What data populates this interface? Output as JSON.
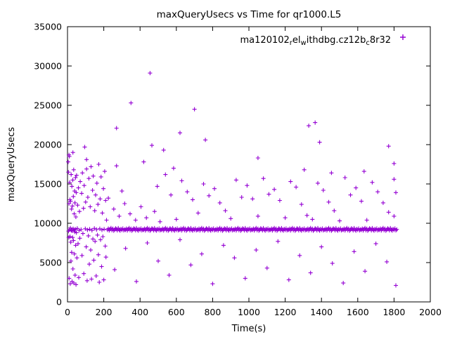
{
  "chart_data": {
    "type": "scatter",
    "title": "maxQueryUsecs vs Time for qr1000.L5",
    "xlabel": "Time(s)",
    "ylabel": "maxQueryUsecs",
    "xlim": [
      0,
      2000
    ],
    "ylim": [
      0,
      35000
    ],
    "xticks": [
      0,
      200,
      400,
      600,
      800,
      1000,
      1200,
      1400,
      1600,
      1800,
      2000
    ],
    "yticks": [
      0,
      5000,
      10000,
      15000,
      20000,
      25000,
      30000,
      35000
    ],
    "grid": false,
    "legend_position": "top-right-inside",
    "marker": "plus",
    "marker_color": "#9400D3",
    "legend": {
      "label_plain": "ma120102_rel_withdbg.cz12b_c8r32",
      "segments": [
        {
          "t": "ma120102",
          "sub": false
        },
        {
          "t": "r",
          "sub": true
        },
        {
          "t": "el",
          "sub": false
        },
        {
          "t": "w",
          "sub": true
        },
        {
          "t": "ithdbg.cz12b",
          "sub": false
        },
        {
          "t": "c",
          "sub": true
        },
        {
          "t": "8r32",
          "sub": false
        }
      ]
    },
    "band": {
      "note": "dense horizontal band of samples, expanded to points at render time",
      "x_start": 220,
      "x_end": 1815,
      "step": 5,
      "y_cycle": [
        9150,
        9320,
        9080,
        9250,
        9400,
        9120,
        9300,
        9050,
        9200,
        9350,
        9250,
        9100,
        9380,
        9180,
        9060,
        9280,
        9150,
        9330,
        9100,
        9220
      ]
    },
    "points": [
      [
        4,
        17800
      ],
      [
        5,
        16500
      ],
      [
        6,
        9000
      ],
      [
        7,
        8200
      ],
      [
        8,
        12500
      ],
      [
        8,
        18700
      ],
      [
        9,
        3000
      ],
      [
        10,
        18500
      ],
      [
        10,
        9200
      ],
      [
        12,
        15200
      ],
      [
        13,
        13000
      ],
      [
        14,
        8300
      ],
      [
        15,
        2300
      ],
      [
        16,
        9400
      ],
      [
        17,
        12800
      ],
      [
        18,
        7600
      ],
      [
        19,
        5200
      ],
      [
        20,
        16200
      ],
      [
        21,
        9100
      ],
      [
        22,
        11800
      ],
      [
        23,
        6300
      ],
      [
        24,
        14700
      ],
      [
        25,
        2600
      ],
      [
        26,
        9050
      ],
      [
        27,
        12200
      ],
      [
        28,
        8200
      ],
      [
        29,
        15500
      ],
      [
        30,
        19000
      ],
      [
        30,
        4200
      ],
      [
        31,
        9300
      ],
      [
        32,
        13400
      ],
      [
        33,
        7800
      ],
      [
        34,
        16800
      ],
      [
        35,
        2400
      ],
      [
        36,
        9150
      ],
      [
        37,
        11200
      ],
      [
        38,
        6100
      ],
      [
        39,
        14100
      ],
      [
        40,
        8900
      ],
      [
        41,
        12600
      ],
      [
        42,
        3400
      ],
      [
        43,
        9250
      ],
      [
        44,
        15800
      ],
      [
        45,
        7200
      ],
      [
        46,
        10800
      ],
      [
        47,
        2200
      ],
      [
        48,
        13900
      ],
      [
        49,
        8800
      ],
      [
        50,
        16100
      ],
      [
        52,
        5600
      ],
      [
        54,
        9350
      ],
      [
        56,
        12300
      ],
      [
        58,
        7400
      ],
      [
        60,
        14500
      ],
      [
        62,
        3100
      ],
      [
        64,
        9100
      ],
      [
        66,
        11500
      ],
      [
        68,
        8100
      ],
      [
        70,
        15300
      ],
      [
        75,
        9200
      ],
      [
        78,
        13800
      ],
      [
        80,
        5900
      ],
      [
        82,
        16400
      ],
      [
        85,
        8700
      ],
      [
        88,
        11900
      ],
      [
        90,
        3600
      ],
      [
        92,
        14800
      ],
      [
        95,
        19700
      ],
      [
        98,
        9300
      ],
      [
        100,
        12700
      ],
      [
        103,
        7000
      ],
      [
        105,
        16900
      ],
      [
        105,
        18100
      ],
      [
        108,
        2700
      ],
      [
        110,
        9150
      ],
      [
        112,
        13300
      ],
      [
        115,
        8400
      ],
      [
        118,
        15700
      ],
      [
        120,
        4800
      ],
      [
        122,
        9250
      ],
      [
        125,
        12100
      ],
      [
        128,
        6600
      ],
      [
        130,
        17200
      ],
      [
        132,
        2900
      ],
      [
        135,
        9100
      ],
      [
        138,
        14200
      ],
      [
        140,
        8000
      ],
      [
        142,
        16000
      ],
      [
        145,
        5300
      ],
      [
        148,
        9350
      ],
      [
        150,
        11600
      ],
      [
        152,
        7700
      ],
      [
        155,
        13600
      ],
      [
        158,
        3300
      ],
      [
        160,
        9200
      ],
      [
        162,
        15100
      ],
      [
        165,
        8500
      ],
      [
        168,
        12400
      ],
      [
        170,
        6000
      ],
      [
        172,
        17500
      ],
      [
        175,
        2500
      ],
      [
        178,
        9300
      ],
      [
        180,
        13100
      ],
      [
        182,
        7900
      ],
      [
        185,
        15900
      ],
      [
        188,
        4500
      ],
      [
        190,
        9150
      ],
      [
        192,
        11300
      ],
      [
        195,
        8300
      ],
      [
        198,
        14400
      ],
      [
        200,
        2800
      ],
      [
        202,
        9250
      ],
      [
        205,
        16600
      ],
      [
        208,
        7100
      ],
      [
        210,
        12900
      ],
      [
        212,
        5700
      ],
      [
        215,
        10400
      ],
      [
        225,
        13200
      ],
      [
        255,
        11800
      ],
      [
        270,
        17300
      ],
      [
        285,
        10900
      ],
      [
        300,
        14100
      ],
      [
        315,
        12500
      ],
      [
        345,
        11200
      ],
      [
        375,
        10400
      ],
      [
        405,
        12100
      ],
      [
        420,
        17800
      ],
      [
        435,
        10700
      ],
      [
        480,
        11500
      ],
      [
        495,
        14700
      ],
      [
        510,
        10200
      ],
      [
        540,
        16200
      ],
      [
        570,
        13600
      ],
      [
        585,
        17000
      ],
      [
        600,
        10500
      ],
      [
        630,
        15400
      ],
      [
        660,
        14000
      ],
      [
        690,
        13000
      ],
      [
        720,
        11300
      ],
      [
        750,
        15000
      ],
      [
        780,
        13500
      ],
      [
        810,
        14400
      ],
      [
        840,
        12600
      ],
      [
        870,
        11600
      ],
      [
        900,
        10600
      ],
      [
        930,
        15500
      ],
      [
        960,
        13300
      ],
      [
        990,
        14800
      ],
      [
        1020,
        13100
      ],
      [
        1050,
        10900
      ],
      [
        1080,
        15700
      ],
      [
        1110,
        13700
      ],
      [
        1140,
        14300
      ],
      [
        1170,
        12900
      ],
      [
        1200,
        10700
      ],
      [
        1230,
        15300
      ],
      [
        1260,
        14600
      ],
      [
        1290,
        12400
      ],
      [
        1305,
        16800
      ],
      [
        1320,
        11000
      ],
      [
        1350,
        10500
      ],
      [
        1380,
        15100
      ],
      [
        1410,
        14200
      ],
      [
        1440,
        12700
      ],
      [
        1455,
        16400
      ],
      [
        1470,
        11600
      ],
      [
        1500,
        10300
      ],
      [
        1530,
        15800
      ],
      [
        1560,
        13600
      ],
      [
        1590,
        14500
      ],
      [
        1620,
        12800
      ],
      [
        1635,
        16600
      ],
      [
        1650,
        10400
      ],
      [
        1680,
        15200
      ],
      [
        1710,
        14000
      ],
      [
        1740,
        12600
      ],
      [
        1770,
        11400
      ],
      [
        1800,
        10900
      ],
      [
        1800,
        15600
      ],
      [
        1810,
        13900
      ],
      [
        260,
        4100
      ],
      [
        320,
        6800
      ],
      [
        380,
        2600
      ],
      [
        440,
        7500
      ],
      [
        500,
        5200
      ],
      [
        560,
        3400
      ],
      [
        620,
        7900
      ],
      [
        680,
        4700
      ],
      [
        740,
        6100
      ],
      [
        800,
        2300
      ],
      [
        860,
        7200
      ],
      [
        920,
        5600
      ],
      [
        980,
        3000
      ],
      [
        1040,
        6600
      ],
      [
        1100,
        4300
      ],
      [
        1160,
        7700
      ],
      [
        1220,
        2800
      ],
      [
        1280,
        5900
      ],
      [
        1340,
        3700
      ],
      [
        1400,
        7000
      ],
      [
        1460,
        4900
      ],
      [
        1520,
        2400
      ],
      [
        1580,
        6400
      ],
      [
        1640,
        3900
      ],
      [
        1700,
        7400
      ],
      [
        1760,
        5100
      ],
      [
        1810,
        2100
      ],
      [
        455,
        29100
      ],
      [
        350,
        25300
      ],
      [
        700,
        24500
      ],
      [
        270,
        22100
      ],
      [
        620,
        21500
      ],
      [
        1330,
        22400
      ],
      [
        1365,
        22800
      ],
      [
        1390,
        20300
      ],
      [
        465,
        19900
      ],
      [
        760,
        20600
      ],
      [
        1050,
        18300
      ],
      [
        530,
        19300
      ],
      [
        1770,
        19800
      ],
      [
        1800,
        17600
      ]
    ]
  }
}
